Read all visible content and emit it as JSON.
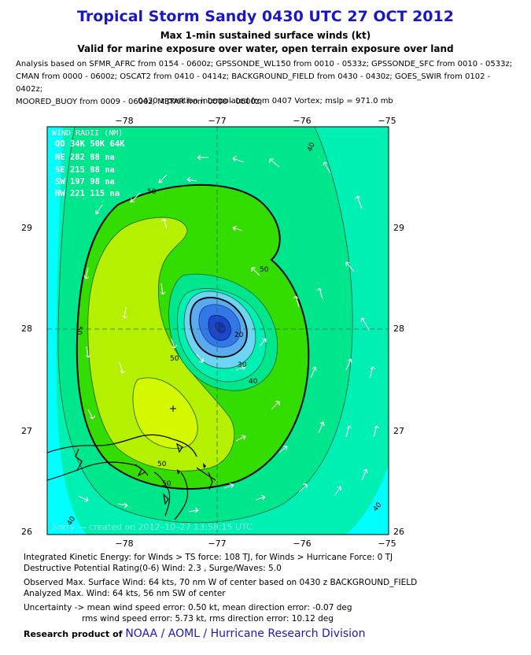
{
  "header": {
    "title": "Tropical Storm Sandy 0430 UTC 27 OCT 2012",
    "subtitle1": "Max 1-min sustained surface winds (kt)",
    "subtitle2": "Valid for marine exposure over water, open terrain exposure over land",
    "analysis_lines": [
      "Analysis based on SFMR_AFRC from 0154 - 0600z; GPSSONDE_WL150 from 0010 - 0533z; GPSSONDE_SFC from 0010 - 0533z;",
      "CMAN from 0000 - 0600z; OSCAT2 from 0410 - 0414z; BACKGROUND_FIELD from 0430 - 0430z; GOES_SWIR from 0102 - 0402z;",
      "MOORED_BUOY from 0009 - 0600z; METAR from 0000 - 0600z;"
    ],
    "position_note": "0430 z position interpolated from 0407 Vortex; mslp = 971.0 mb"
  },
  "map": {
    "lon_ticks": [
      "−78",
      "−77",
      "−76",
      "−75"
    ],
    "lat_ticks": [
      "29",
      "28",
      "27",
      "26"
    ],
    "contour_labels": [
      "40",
      "50",
      "50",
      "50",
      "50",
      "50",
      "50",
      "20",
      "30",
      "40",
      "40",
      "40"
    ],
    "wind_radii": {
      "title": "WIND RADII (NM)",
      "header": "QD  34K  50K  64K",
      "rows": [
        "NE  282   88    na",
        "SE  215   88    na",
        "SW  197   98    na",
        "NW  221  115    na"
      ]
    },
    "watermark": "Sorry — created on 2012–10–27 13:58:15 UTC",
    "colors": {
      "c_lt30": "#00ffff",
      "c_30_40": "#00f0b4",
      "c_40_50": "#00e68c",
      "c_50_64": "#33dd00",
      "c_64_plus": "#b4f000",
      "c_max": "#d4f800",
      "eye_outer": "#6ed4f4",
      "eye_mid": "#5aaaf0",
      "eye_inner": "#3278e6",
      "eye_core": "#1e46cc"
    }
  },
  "footer": {
    "ike_line": "Integrated Kinetic Energy: for Winds > TS force: 108 TJ, for Winds > Hurricane Force: 0 TJ",
    "dpr_line": "Destructive Potential Rating(0-6)  Wind: 2.3 , Surge/Waves: 5.0",
    "obs_line": "Observed Max. Surface Wind: 64 kts, 70 nm W of center based on 0430 z BACKGROUND_FIELD",
    "analyzed_line": "Analyzed Max. Wind: 64 kts, 56 nm  SW of center",
    "uncert_line1": "Uncertainty -> mean wind speed error:  0.50 kt, mean direction error:  -0.07 deg",
    "uncert_line2": "rms wind speed error: 5.73 kt, rms direction error: 10.12 deg",
    "brand_prefix": "Research product of",
    "brand_org": "NOAA  /  AOML  /  Hurricane Research Division"
  }
}
